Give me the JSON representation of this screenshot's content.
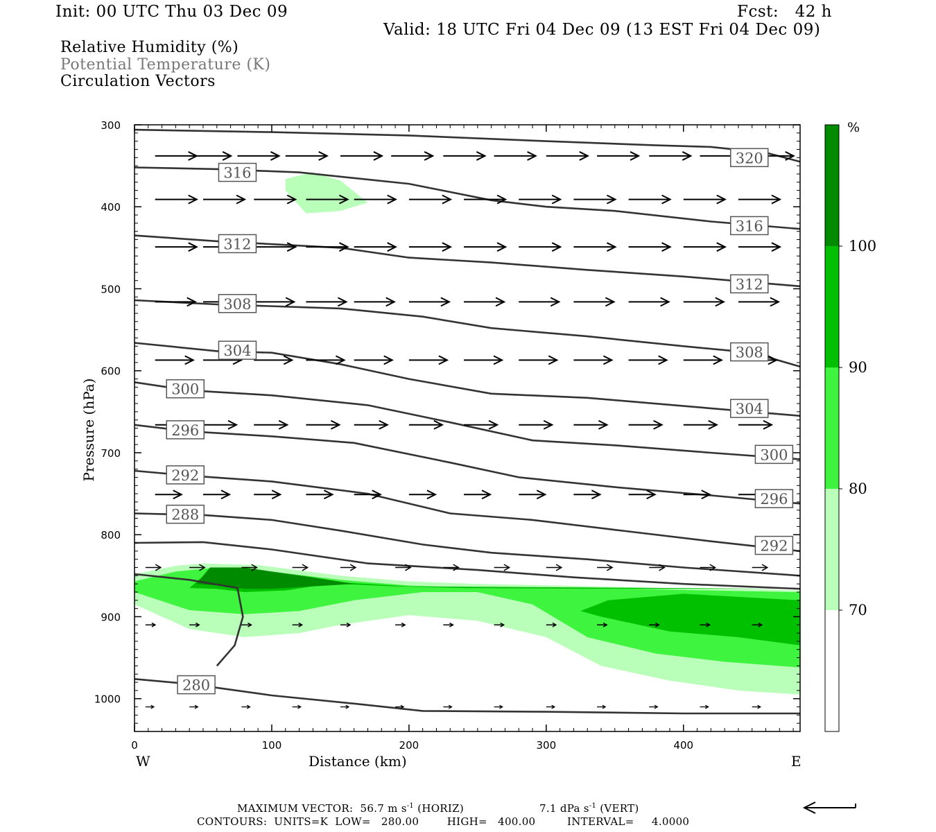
{
  "header": {
    "init": "Init: 00 UTC Thu 03 Dec 09",
    "fcst": "Fcst:   42 h",
    "valid": "Valid: 18 UTC Fri 04 Dec 09 (13 EST Fri 04 Dec 09)",
    "field1": "Relative Humidity (%)",
    "field2": "Potential Temperature (K)",
    "field3": "Circulation Vectors"
  },
  "footer": {
    "max_vector_label": "MAXIMUM VECTOR:",
    "horiz_value": "56.7 m s",
    "horiz_unit": "(HORIZ)",
    "vert_value": "7.1 dPa s",
    "vert_unit": "(VERT)",
    "exponent": "-1",
    "contours": "CONTOURS:  UNITS=K  LOW=   280.00        HIGH=   400.00         INTERVAL=     4.0000"
  },
  "colors": {
    "rh70": "#b9ffb9",
    "rh80": "#3ff43f",
    "rh90": "#00c000",
    "rh100": "#008a00",
    "theta": "#333333"
  },
  "chart_data": {
    "type": "cross-section",
    "xlabel": "Distance (km)",
    "ylabel": "Pressure (hPa)",
    "xlim": [
      0,
      485
    ],
    "ylim": [
      1040,
      300
    ],
    "x_ticks": [
      0,
      100,
      200,
      300,
      400
    ],
    "y_ticks": [
      300,
      400,
      500,
      600,
      700,
      800,
      900,
      1000
    ],
    "x_end_labels": {
      "left": "W",
      "right": "E"
    },
    "colorbar": {
      "unit": "%",
      "levels": [
        70,
        80,
        90,
        100
      ],
      "colors": [
        "#ffffff",
        "#b9ffb9",
        "#3ff43f",
        "#00c000",
        "#008a00"
      ]
    },
    "rh_regions": [
      {
        "level": 70,
        "points": [
          [
            0,
            848
          ],
          [
            30,
            838
          ],
          [
            50,
            835
          ],
          [
            90,
            837
          ],
          [
            150,
            850
          ],
          [
            200,
            857
          ],
          [
            250,
            860
          ],
          [
            310,
            862
          ],
          [
            360,
            864
          ],
          [
            420,
            866
          ],
          [
            485,
            868
          ],
          [
            485,
            995
          ],
          [
            440,
            990
          ],
          [
            390,
            978
          ],
          [
            340,
            960
          ],
          [
            300,
            925
          ],
          [
            250,
            905
          ],
          [
            200,
            898
          ],
          [
            150,
            910
          ],
          [
            120,
            920
          ],
          [
            80,
            925
          ],
          [
            40,
            915
          ],
          [
            0,
            885
          ]
        ]
      },
      {
        "level": 70,
        "points": [
          [
            110,
            366
          ],
          [
            130,
            358
          ],
          [
            150,
            368
          ],
          [
            170,
            395
          ],
          [
            150,
            405
          ],
          [
            125,
            408
          ],
          [
            110,
            380
          ]
        ]
      },
      {
        "level": 80,
        "points": [
          [
            0,
            857
          ],
          [
            30,
            845
          ],
          [
            60,
            840
          ],
          [
            100,
            845
          ],
          [
            150,
            855
          ],
          [
            200,
            862
          ],
          [
            250,
            865
          ],
          [
            310,
            866
          ],
          [
            360,
            866
          ],
          [
            420,
            868
          ],
          [
            485,
            870
          ],
          [
            485,
            962
          ],
          [
            430,
            955
          ],
          [
            380,
            945
          ],
          [
            330,
            925
          ],
          [
            290,
            885
          ],
          [
            250,
            870
          ],
          [
            210,
            870
          ],
          [
            160,
            880
          ],
          [
            120,
            893
          ],
          [
            80,
            897
          ],
          [
            40,
            892
          ],
          [
            0,
            870
          ]
        ]
      },
      {
        "level": 90,
        "points": [
          [
            40,
            865
          ],
          [
            55,
            843
          ],
          [
            75,
            840
          ],
          [
            100,
            850
          ],
          [
            150,
            860
          ],
          [
            190,
            863
          ],
          [
            240,
            865
          ],
          [
            330,
            866
          ],
          [
            390,
            866
          ],
          [
            440,
            866
          ],
          [
            485,
            866
          ],
          [
            485,
            935
          ],
          [
            440,
            925
          ],
          [
            390,
            918
          ],
          [
            340,
            900
          ],
          [
            325,
            893
          ],
          [
            345,
            880
          ],
          [
            400,
            872
          ],
          [
            485,
            880
          ],
          [
            485,
            866
          ],
          [
            200,
            863
          ],
          [
            150,
            858
          ],
          [
            110,
            868
          ],
          [
            80,
            870
          ],
          [
            60,
            866
          ]
        ]
      },
      {
        "level": 100,
        "points": [
          [
            45,
            860
          ],
          [
            55,
            840
          ],
          [
            80,
            840
          ],
          [
            100,
            845
          ],
          [
            130,
            852
          ],
          [
            160,
            860
          ],
          [
            140,
            862
          ],
          [
            100,
            866
          ],
          [
            80,
            866
          ],
          [
            60,
            862
          ]
        ]
      }
    ],
    "theta_contours": [
      {
        "value": 320,
        "points": [
          [
            0,
            306
          ],
          [
            100,
            309
          ],
          [
            200,
            313
          ],
          [
            300,
            320
          ],
          [
            380,
            325
          ],
          [
            420,
            327
          ],
          [
            460,
            334
          ],
          [
            485,
            345
          ]
        ],
        "labels": [
          [
            448,
            340
          ]
        ]
      },
      {
        "value": 316,
        "points": [
          [
            0,
            352
          ],
          [
            60,
            354
          ],
          [
            120,
            358
          ],
          [
            200,
            372
          ],
          [
            260,
            392
          ],
          [
            300,
            400
          ],
          [
            350,
            405
          ],
          [
            420,
            418
          ],
          [
            485,
            427
          ]
        ],
        "labels": [
          [
            75,
            358
          ],
          [
            448,
            423
          ]
        ]
      },
      {
        "value": 312,
        "points": [
          [
            0,
            435
          ],
          [
            60,
            442
          ],
          [
            150,
            450
          ],
          [
            200,
            462
          ],
          [
            260,
            468
          ],
          [
            330,
            477
          ],
          [
            400,
            485
          ],
          [
            485,
            497
          ]
        ],
        "labels": [
          [
            75,
            445
          ],
          [
            448,
            494
          ]
        ]
      },
      {
        "value": 308,
        "points": [
          [
            0,
            514
          ],
          [
            60,
            519
          ],
          [
            150,
            524
          ],
          [
            210,
            534
          ],
          [
            260,
            548
          ],
          [
            330,
            558
          ],
          [
            400,
            570
          ],
          [
            450,
            578
          ],
          [
            485,
            595
          ]
        ],
        "labels": [
          [
            75,
            518
          ],
          [
            448,
            577
          ]
        ]
      },
      {
        "value": 304,
        "points": [
          [
            0,
            566
          ],
          [
            60,
            576
          ],
          [
            100,
            578
          ],
          [
            150,
            592
          ],
          [
            200,
            610
          ],
          [
            260,
            628
          ],
          [
            330,
            633
          ],
          [
            400,
            643
          ],
          [
            485,
            655
          ]
        ],
        "labels": [
          [
            75,
            575
          ],
          [
            448,
            646
          ]
        ]
      },
      {
        "value": 300,
        "points": [
          [
            0,
            614
          ],
          [
            40,
            624
          ],
          [
            100,
            630
          ],
          [
            170,
            642
          ],
          [
            230,
            663
          ],
          [
            290,
            685
          ],
          [
            350,
            691
          ],
          [
            420,
            700
          ],
          [
            485,
            708
          ]
        ],
        "labels": [
          [
            37,
            622
          ],
          [
            466,
            702
          ]
        ]
      },
      {
        "value": 296,
        "points": [
          [
            0,
            666
          ],
          [
            40,
            674
          ],
          [
            100,
            680
          ],
          [
            160,
            688
          ],
          [
            230,
            712
          ],
          [
            280,
            730
          ],
          [
            350,
            742
          ],
          [
            420,
            752
          ],
          [
            485,
            762
          ]
        ],
        "labels": [
          [
            37,
            672
          ],
          [
            466,
            756
          ]
        ]
      },
      {
        "value": 292,
        "points": [
          [
            0,
            722
          ],
          [
            40,
            728
          ],
          [
            100,
            735
          ],
          [
            170,
            750
          ],
          [
            230,
            774
          ],
          [
            290,
            782
          ],
          [
            360,
            796
          ],
          [
            420,
            808
          ],
          [
            485,
            820
          ]
        ],
        "labels": [
          [
            37,
            727
          ],
          [
            466,
            813
          ]
        ]
      },
      {
        "value": 288,
        "points": [
          [
            0,
            774
          ],
          [
            50,
            776
          ],
          [
            100,
            782
          ],
          [
            150,
            795
          ],
          [
            210,
            812
          ],
          [
            260,
            822
          ],
          [
            330,
            830
          ],
          [
            400,
            840
          ],
          [
            485,
            850
          ]
        ],
        "labels": [
          [
            37,
            775
          ]
        ]
      },
      {
        "value": 284,
        "points": [
          [
            0,
            810
          ],
          [
            50,
            809
          ],
          [
            100,
            818
          ],
          [
            170,
            835
          ],
          [
            250,
            843
          ],
          [
            320,
            852
          ],
          [
            400,
            860
          ],
          [
            485,
            866
          ]
        ],
        "labels": []
      },
      {
        "value": 280,
        "points": [
          [
            0,
            976
          ],
          [
            40,
            982
          ],
          [
            100,
            996
          ],
          [
            160,
            1006
          ],
          [
            210,
            1015
          ],
          [
            300,
            1016
          ],
          [
            400,
            1018
          ],
          [
            485,
            1018
          ]
        ],
        "labels": [
          [
            45,
            983
          ]
        ]
      },
      {
        "value": 280,
        "points": [
          [
            0,
            848
          ],
          [
            40,
            855
          ],
          [
            75,
            865
          ],
          [
            79,
            900
          ],
          [
            73,
            935
          ],
          [
            60,
            960
          ]
        ],
        "labels": []
      }
    ],
    "vectors": [
      {
        "p": 338,
        "xs": [
          15,
          40,
          75,
          110,
          150,
          187,
          225,
          262,
          300,
          337,
          375,
          412,
          450
        ],
        "len": 60,
        "w": 2
      },
      {
        "p": 391,
        "xs": [
          15,
          50,
          87,
          125,
          160,
          200,
          240,
          280,
          320,
          360,
          400,
          440
        ],
        "len": 60,
        "w": 2
      },
      {
        "p": 449,
        "xs": [
          15,
          50,
          87,
          125,
          160,
          200,
          240,
          280,
          320,
          360,
          400,
          440
        ],
        "len": 60,
        "w": 2
      },
      {
        "p": 516,
        "xs": [
          15,
          50,
          87,
          125,
          160,
          200,
          240,
          280,
          320,
          360,
          400,
          440
        ],
        "len": 58,
        "w": 2
      },
      {
        "p": 587,
        "xs": [
          15,
          50,
          87,
          125,
          160,
          200,
          240,
          280,
          320,
          360,
          400,
          440
        ],
        "len": 55,
        "w": 2
      },
      {
        "p": 666,
        "xs": [
          15,
          50,
          87,
          125,
          160,
          200,
          240,
          280,
          320,
          360,
          400,
          440
        ],
        "len": 48,
        "w": 2
      },
      {
        "p": 751,
        "xs": [
          15,
          50,
          87,
          125,
          160,
          200,
          240,
          280,
          320,
          360,
          400,
          440
        ],
        "len": 38,
        "w": 2
      },
      {
        "p": 840,
        "xs": [
          8,
          40,
          78,
          115,
          150,
          190,
          225,
          262,
          300,
          337,
          375,
          412,
          450
        ],
        "len": 22,
        "w": 1.5
      },
      {
        "p": 910,
        "xs": [
          8,
          40,
          78,
          115,
          150,
          190,
          225,
          262,
          300,
          337,
          375,
          412,
          450
        ],
        "len": 14,
        "w": 1.5
      },
      {
        "p": 1010,
        "xs": [
          8,
          40,
          78,
          115,
          150,
          190,
          225,
          262,
          300,
          337,
          375,
          412,
          450
        ],
        "len": 12,
        "w": 1.3
      }
    ]
  }
}
